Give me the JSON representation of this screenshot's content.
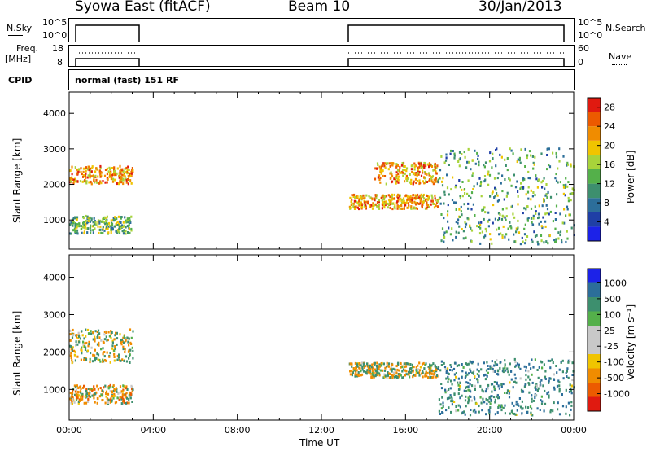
{
  "header": {
    "station": "Syowa East (fitACF)",
    "beam": "Beam 10",
    "date": "30/Jan/2013"
  },
  "strip_labels": {
    "nsky": "N.Sky",
    "nsky_ticks": [
      "10^5",
      "10^0"
    ],
    "nsearch": "N.Search",
    "nsearch_ticks": [
      "10^5",
      "10^0"
    ],
    "freq_line1": "Freq.",
    "freq_line2": "[MHz]",
    "freq_ticks": [
      "18",
      "8"
    ],
    "nave": "Nave",
    "nave_ticks": [
      "60",
      "0"
    ],
    "cpid": "CPID",
    "cpid_text": "normal (fast) 151 RF"
  },
  "colors": {
    "power": [
      "#1c22e8",
      "#1f3fa6",
      "#2c6e9a",
      "#3d8f6e",
      "#54b04a",
      "#a8d33a",
      "#f0c400",
      "#f08c00",
      "#ec5a00",
      "#e01a10"
    ],
    "velocity": [
      "#e01a10",
      "#ec5a00",
      "#f08c00",
      "#f0c400",
      "#c8c8c8",
      "#c8c8c8",
      "#54b04a",
      "#3d8f6e",
      "#2c6e9a",
      "#1c22e8"
    ]
  },
  "chart_data": [
    {
      "type": "heatmap",
      "title": "",
      "xlabel": "Time UT",
      "ylabel": "Slant Range [km]",
      "xlim": [
        "00:00",
        "24:00"
      ],
      "ylim": [
        180,
        4600
      ],
      "x_ticks": [
        "00:00",
        "04:00",
        "08:00",
        "12:00",
        "16:00",
        "20:00",
        "00:00"
      ],
      "y_ticks": [
        1000,
        2000,
        3000,
        4000
      ],
      "colorbar": {
        "label": "Power [dB]",
        "ticks": [
          4,
          8,
          12,
          16,
          20,
          24,
          28
        ],
        "range": [
          0,
          30
        ]
      },
      "data_gap_hours": [
        3.0,
        13.3
      ],
      "echo_regions": [
        {
          "t_start": 0.0,
          "t_end": 3.0,
          "range_km": [
            2000,
            2500
          ],
          "level": 22
        },
        {
          "t_start": 0.0,
          "t_end": 3.0,
          "range_km": [
            600,
            1100
          ],
          "level": 14
        },
        {
          "t_start": 13.3,
          "t_end": 17.5,
          "range_km": [
            1300,
            1700
          ],
          "level": 22
        },
        {
          "t_start": 14.5,
          "t_end": 17.5,
          "range_km": [
            2000,
            2600
          ],
          "level": 22
        },
        {
          "t_start": 17.5,
          "t_end": 24.0,
          "range_km": [
            300,
            3000
          ],
          "level": 12
        }
      ]
    },
    {
      "type": "heatmap",
      "title": "",
      "xlabel": "Time UT",
      "ylabel": "Slant Range [km]",
      "xlim": [
        "00:00",
        "24:00"
      ],
      "ylim": [
        180,
        4600
      ],
      "x_ticks": [
        "00:00",
        "04:00",
        "08:00",
        "12:00",
        "16:00",
        "20:00",
        "00:00"
      ],
      "y_ticks": [
        1000,
        2000,
        3000,
        4000
      ],
      "colorbar": {
        "label": "Velocity [m s⁻¹]",
        "ticks": [
          1000,
          500,
          100,
          25,
          -25,
          -100,
          -500,
          -1000
        ]
      },
      "data_gap_hours": [
        3.0,
        13.3
      ],
      "echo_regions": [
        {
          "t_start": 0.0,
          "t_end": 3.0,
          "range_km": [
            1700,
            2600
          ],
          "level": 0
        },
        {
          "t_start": 0.0,
          "t_end": 3.0,
          "range_km": [
            600,
            1100
          ],
          "level": -200
        },
        {
          "t_start": 13.3,
          "t_end": 17.5,
          "range_km": [
            1300,
            1700
          ],
          "level": 0
        },
        {
          "t_start": 17.5,
          "t_end": 24.0,
          "range_km": [
            300,
            1800
          ],
          "level": 400
        }
      ]
    }
  ],
  "axis_label_x": "Time UT"
}
